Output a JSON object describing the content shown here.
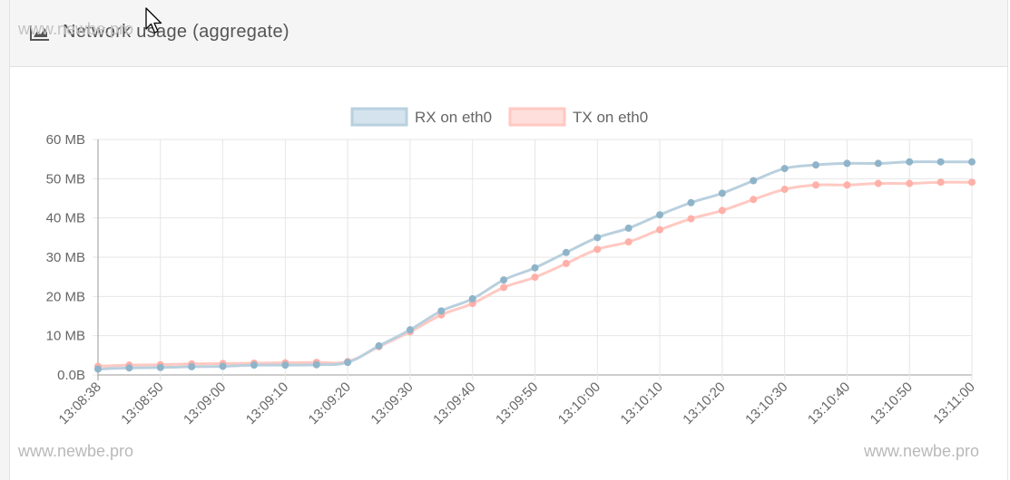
{
  "panel": {
    "title": "Network usage (aggregate)",
    "icon": "area-chart-icon"
  },
  "watermarks": {
    "top": "www.newbe.pro",
    "bottom_left": "www.newbe.pro",
    "bottom_right": "www.newbe.pro"
  },
  "colors": {
    "rx_line": "#b9d0de",
    "rx_point": "#8fb4c9",
    "rx_fill": "#d4e3ed",
    "tx_line": "#ffc9c2",
    "tx_point": "#ffb0a8",
    "tx_fill": "#ffdfdb",
    "grid": "#e6e6e6",
    "axis": "#999999"
  },
  "chart_data": {
    "type": "line",
    "title": "",
    "xlabel": "",
    "ylabel": "",
    "legend_position": "top-center",
    "grid": true,
    "ylim": [
      0,
      60
    ],
    "y_ticks": [
      "0.0B",
      "10 MB",
      "20 MB",
      "30 MB",
      "40 MB",
      "50 MB",
      "60 MB"
    ],
    "x_ticks": [
      "13:08:38",
      "13:08:50",
      "13:09:00",
      "13:09:10",
      "13:09:20",
      "13:09:30",
      "13:09:40",
      "13:09:50",
      "13:10:00",
      "13:10:10",
      "13:10:20",
      "13:10:30",
      "13:10:40",
      "13:10:50",
      "13:11:00"
    ],
    "series": [
      {
        "name": "RX on eth0",
        "values": [
          1.5,
          1.8,
          1.9,
          2.1,
          2.2,
          2.5,
          2.5,
          2.6,
          3.2,
          7.4,
          11.5,
          16.3,
          19.4,
          24.2,
          27.3,
          31.2,
          35.0,
          37.4,
          40.8,
          43.9,
          46.3,
          49.5,
          52.6,
          53.5,
          53.9,
          53.9,
          54.3,
          54.3,
          54.3
        ]
      },
      {
        "name": "TX on eth0",
        "values": [
          2.2,
          2.5,
          2.6,
          2.8,
          2.9,
          3.0,
          3.1,
          3.2,
          3.4,
          7.2,
          11.0,
          15.3,
          18.2,
          22.3,
          24.9,
          28.4,
          32.0,
          33.9,
          37.0,
          39.8,
          41.9,
          44.7,
          47.3,
          48.4,
          48.4,
          48.8,
          48.8,
          49.1,
          49.1
        ]
      }
    ]
  }
}
